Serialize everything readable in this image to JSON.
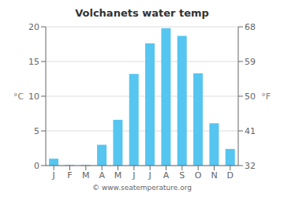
{
  "chart_data": {
    "type": "bar",
    "title": "Volchanets water temp",
    "categories": [
      "J",
      "F",
      "M",
      "A",
      "M",
      "J",
      "J",
      "A",
      "S",
      "O",
      "N",
      "D"
    ],
    "values": [
      1.0,
      0.1,
      0.1,
      3.0,
      6.6,
      13.2,
      17.6,
      19.8,
      18.7,
      13.3,
      6.1,
      2.4
    ],
    "ylabel": "°C",
    "y2label": "°F",
    "ylim": [
      0,
      20
    ],
    "yticks": [
      0,
      5,
      10,
      15,
      20
    ],
    "y2lim": [
      32,
      68
    ],
    "y2ticks": [
      32,
      41,
      50,
      59,
      68
    ],
    "grid": true,
    "color": "#56c5f0",
    "annotations": [
      "© www.seatemperature.org"
    ]
  }
}
